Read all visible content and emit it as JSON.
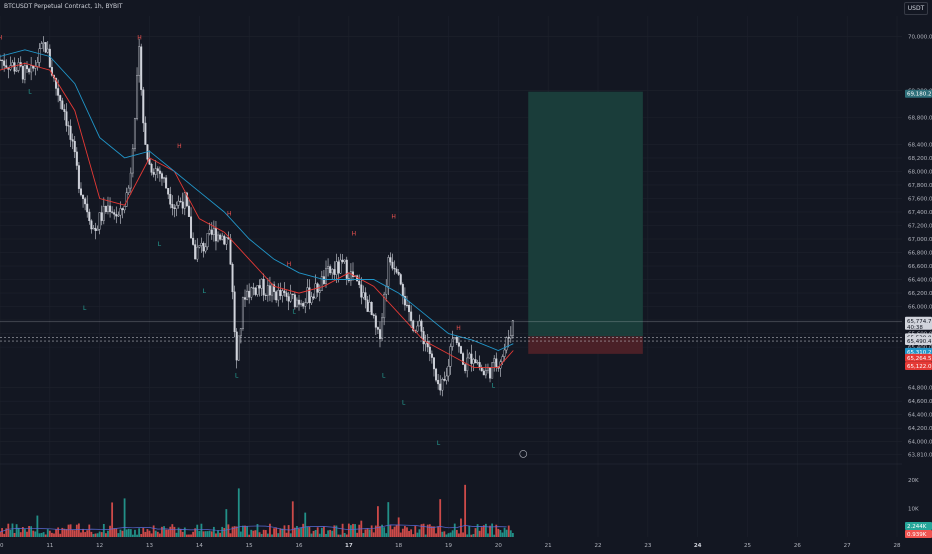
{
  "header": {
    "symbol_title": "BTCUSDT Perpetual Contract, 1h, BYBIT",
    "currency": "USDT"
  },
  "colors": {
    "background": "#131722",
    "grid": "#1e222d",
    "axis_text": "#b2b5be",
    "up": "#d1d4dc",
    "down": "#d1d4dc",
    "vol_up": "#26a69a",
    "vol_down": "#ef5350",
    "ma_red": "#e53935",
    "ma_blue": "#2196c9",
    "label_H": "#ef5350",
    "label_L": "#26a69a",
    "long_profit": "#1a3d3a",
    "long_loss": "#4a2027"
  },
  "chart_data": {
    "type": "candlestick",
    "symbol": "BTCUSDT Perpetual Contract",
    "interval": "1h",
    "exchange": "BYBIT",
    "currency": "USDT",
    "ylim": [
      63700,
      70300
    ],
    "y_ticks": [
      "70,000.0",
      "69,200.0",
      "68,800.0",
      "68,400.0",
      "68,200.0",
      "68,000.0",
      "67,800.0",
      "67,600.0",
      "67,400.0",
      "67,200.0",
      "67,000.0",
      "66,800.0",
      "66,600.0",
      "66,400.0",
      "66,200.0",
      "66,000.0",
      "65,800.0",
      "65,600.0",
      "65,400.0",
      "64,800.0",
      "64,600.0",
      "64,400.0",
      "64,200.0",
      "64,000.0",
      "63,810.0"
    ],
    "y_tick_values": [
      70000,
      69200,
      68800,
      68400,
      68200,
      68000,
      67800,
      67600,
      67400,
      67200,
      67000,
      66800,
      66600,
      66400,
      66200,
      66000,
      65800,
      65600,
      65400,
      64800,
      64600,
      64400,
      64200,
      64000,
      63810
    ],
    "x_ticks": [
      "10",
      "11",
      "12",
      "13",
      "14",
      "15",
      "16",
      "17",
      "18",
      "19",
      "20",
      "21",
      "22",
      "23",
      "24",
      "25",
      "26",
      "27",
      "28"
    ],
    "x_tick_days": [
      10,
      11,
      12,
      13,
      14,
      15,
      16,
      17,
      18,
      19,
      20,
      21,
      22,
      23,
      24,
      25,
      26,
      27,
      28
    ],
    "x_bold_ticks": [
      "17",
      "24"
    ],
    "x_start_day": 10,
    "x_end_day": 28.1,
    "price_path": [
      [
        10.0,
        69650
      ],
      [
        10.3,
        69550
      ],
      [
        10.6,
        69400
      ],
      [
        10.9,
        69900
      ],
      [
        11.1,
        69300
      ],
      [
        11.3,
        68900
      ],
      [
        11.6,
        67800
      ],
      [
        11.9,
        67100
      ],
      [
        12.0,
        67300
      ],
      [
        12.2,
        67500
      ],
      [
        12.4,
        67300
      ],
      [
        12.6,
        67800
      ],
      [
        12.8,
        69800
      ],
      [
        12.9,
        68400
      ],
      [
        13.0,
        68100
      ],
      [
        13.2,
        68000
      ],
      [
        13.5,
        67500
      ],
      [
        13.7,
        67600
      ],
      [
        13.9,
        66800
      ],
      [
        14.1,
        66900
      ],
      [
        14.3,
        67100
      ],
      [
        14.6,
        67000
      ],
      [
        14.75,
        65150
      ],
      [
        14.9,
        66200
      ],
      [
        15.2,
        66300
      ],
      [
        15.5,
        66200
      ],
      [
        15.8,
        66100
      ],
      [
        16.0,
        66100
      ],
      [
        16.3,
        66200
      ],
      [
        16.6,
        66500
      ],
      [
        16.9,
        66600
      ],
      [
        17.1,
        66400
      ],
      [
        17.4,
        66000
      ],
      [
        17.6,
        65500
      ],
      [
        17.8,
        66700
      ],
      [
        18.0,
        66600
      ],
      [
        18.2,
        65800
      ],
      [
        18.4,
        65700
      ],
      [
        18.6,
        65400
      ],
      [
        18.8,
        64700
      ],
      [
        18.95,
        64900
      ],
      [
        19.1,
        65700
      ],
      [
        19.3,
        65100
      ],
      [
        19.5,
        65300
      ],
      [
        19.7,
        65000
      ],
      [
        19.9,
        65100
      ],
      [
        20.1,
        65300
      ],
      [
        20.3,
        65780
      ]
    ],
    "swing_labels": [
      {
        "type": "H",
        "day": 10.0,
        "price": 69950
      },
      {
        "type": "L",
        "day": 10.6,
        "price": 69150
      },
      {
        "type": "H",
        "day": 12.8,
        "price": 69950
      },
      {
        "type": "L",
        "day": 11.7,
        "price": 65950
      },
      {
        "type": "H",
        "day": 13.6,
        "price": 68350
      },
      {
        "type": "L",
        "day": 13.2,
        "price": 66900
      },
      {
        "type": "H",
        "day": 14.6,
        "price": 67350
      },
      {
        "type": "L",
        "day": 14.1,
        "price": 66200
      },
      {
        "type": "L",
        "day": 14.75,
        "price": 64950
      },
      {
        "type": "H",
        "day": 15.8,
        "price": 66600
      },
      {
        "type": "L",
        "day": 15.9,
        "price": 65900
      },
      {
        "type": "H",
        "day": 17.1,
        "price": 67050
      },
      {
        "type": "H",
        "day": 17.9,
        "price": 67300
      },
      {
        "type": "L",
        "day": 17.7,
        "price": 64950
      },
      {
        "type": "L",
        "day": 18.1,
        "price": 64550
      },
      {
        "type": "L",
        "day": 18.8,
        "price": 63950
      },
      {
        "type": "H",
        "day": 19.2,
        "price": 65650
      },
      {
        "type": "L",
        "day": 19.9,
        "price": 64800
      }
    ],
    "moving_averages": [
      {
        "color": "ma_red",
        "points": [
          [
            10.0,
            69500
          ],
          [
            10.5,
            69600
          ],
          [
            11.0,
            69500
          ],
          [
            11.5,
            68900
          ],
          [
            12.0,
            67600
          ],
          [
            12.5,
            67500
          ],
          [
            13.0,
            68200
          ],
          [
            13.5,
            68000
          ],
          [
            14.0,
            67300
          ],
          [
            14.5,
            67100
          ],
          [
            15.0,
            66700
          ],
          [
            15.5,
            66300
          ],
          [
            16.0,
            66200
          ],
          [
            16.5,
            66300
          ],
          [
            17.0,
            66500
          ],
          [
            17.5,
            66300
          ],
          [
            18.0,
            65900
          ],
          [
            18.5,
            65500
          ],
          [
            19.0,
            65300
          ],
          [
            19.5,
            65100
          ],
          [
            20.0,
            65100
          ],
          [
            20.3,
            65350
          ]
        ]
      },
      {
        "color": "ma_blue",
        "points": [
          [
            10.0,
            69700
          ],
          [
            10.5,
            69800
          ],
          [
            11.0,
            69700
          ],
          [
            11.5,
            69300
          ],
          [
            12.0,
            68500
          ],
          [
            12.5,
            68200
          ],
          [
            13.0,
            68300
          ],
          [
            13.5,
            68000
          ],
          [
            14.0,
            67700
          ],
          [
            14.5,
            67400
          ],
          [
            15.0,
            67000
          ],
          [
            15.5,
            66700
          ],
          [
            16.0,
            66500
          ],
          [
            16.5,
            66400
          ],
          [
            17.0,
            66400
          ],
          [
            17.5,
            66400
          ],
          [
            18.0,
            66200
          ],
          [
            18.5,
            65900
          ],
          [
            19.0,
            65600
          ],
          [
            19.5,
            65500
          ],
          [
            20.0,
            65350
          ],
          [
            20.3,
            65450
          ]
        ]
      }
    ],
    "current_price": {
      "price": 65774.7,
      "label": "65,774.7",
      "countdown": "40:38"
    },
    "price_labels": [
      {
        "price": 69150,
        "text": "69,180.2",
        "bg": "#2e6f7a"
      },
      {
        "price": 65545,
        "text": "65,538.8",
        "bg": "#d1d4dc"
      },
      {
        "price": 65490,
        "text": "65,490.4",
        "bg": "#d1d4dc"
      },
      {
        "price": 65330,
        "text": "65,310.2",
        "bg": "#2196c9"
      },
      {
        "price": 65240,
        "text": "65,264.5",
        "bg": "#e53935"
      },
      {
        "price": 65120,
        "text": "65,122.0",
        "bg": "#e53935"
      }
    ],
    "long_position": {
      "start_day": 20.6,
      "end_day": 22.9,
      "entry": 65560,
      "target": 69180,
      "stop": 65300
    },
    "volume": {
      "ylim": [
        0,
        25000
      ],
      "ticks": [
        {
          "value": 20000,
          "label": "20K"
        },
        {
          "value": 10000,
          "label": "10K"
        }
      ],
      "last_labels": [
        {
          "text": "2.244K",
          "bg": "#26a69a"
        },
        {
          "text": "0.939K",
          "bg": "#ef5350"
        }
      ]
    }
  }
}
